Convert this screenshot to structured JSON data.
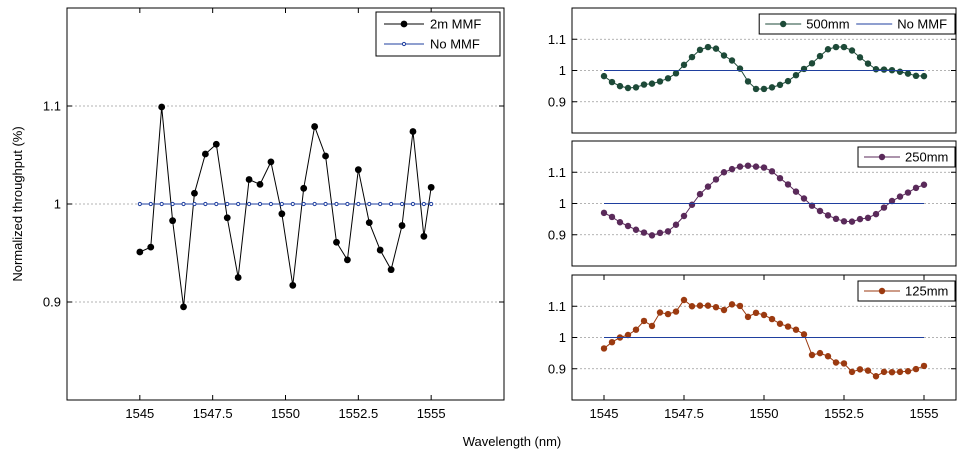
{
  "figure": {
    "xlabel": "Wavelength (nm)",
    "ylabel": "Normalized throughput (%)"
  },
  "chart_data": [
    {
      "type": "line",
      "xlim": [
        1542.5,
        1557.5
      ],
      "ylim": [
        0.8,
        1.2
      ],
      "xticks": [
        "1545",
        "1547.5",
        "1550",
        "1552.5",
        "1555"
      ],
      "xtick_values": [
        1545,
        1547.5,
        1550,
        1552.5,
        1555
      ],
      "yticks": [
        "0.9",
        "1",
        "1.1"
      ],
      "ytick_values": [
        0.9,
        1.0,
        1.1
      ],
      "grid": true,
      "legend": "top-right",
      "x": [
        1545,
        1545.375,
        1545.75,
        1546.125,
        1546.5,
        1546.875,
        1547.25,
        1547.625,
        1548,
        1548.375,
        1548.75,
        1549.125,
        1549.5,
        1549.875,
        1550.25,
        1550.625,
        1551,
        1551.375,
        1551.75,
        1552.125,
        1552.5,
        1552.875,
        1553.25,
        1553.625,
        1554,
        1554.375,
        1554.75,
        1555
      ],
      "series": [
        {
          "name": "2m MMF",
          "color": "#000000",
          "marker": "dot",
          "values": [
            0.951,
            0.956,
            1.099,
            0.983,
            0.895,
            1.011,
            1.051,
            1.061,
            0.986,
            0.925,
            1.025,
            1.02,
            1.043,
            0.99,
            0.917,
            1.016,
            1.079,
            1.049,
            0.961,
            0.943,
            1.035,
            0.981,
            0.953,
            0.933,
            0.978,
            1.074,
            0.967,
            1.017
          ]
        },
        {
          "name": "No MMF",
          "color": "#1f3f9f",
          "marker": "small-circle",
          "values": [
            1.0,
            1.0,
            1.0,
            1.0,
            1.0,
            1.0,
            1.0,
            1.0,
            1.0,
            1.0,
            1.0,
            1.0,
            1.0,
            1.0,
            1.0,
            1.0,
            1.0,
            1.0,
            1.0,
            1.0,
            1.0,
            1.0,
            1.0,
            1.0,
            1.0,
            1.0,
            1.0,
            1.0
          ]
        }
      ]
    },
    {
      "type": "line",
      "xlim": [
        1544,
        1556
      ],
      "ylim": [
        0.8,
        1.2
      ],
      "xticks": [],
      "yticks": [
        "0.9",
        "1",
        "1.1"
      ],
      "ytick_values": [
        0.9,
        1.0,
        1.1
      ],
      "grid": true,
      "legend": "top-right",
      "series": [
        {
          "name": "500mm",
          "color": "#1d4a38",
          "marker": "dot",
          "x": [
            1545,
            1545.25,
            1545.5,
            1545.75,
            1546,
            1546.25,
            1546.5,
            1546.75,
            1547,
            1547.25,
            1547.5,
            1547.75,
            1548,
            1548.25,
            1548.5,
            1548.75,
            1549,
            1549.25,
            1549.5,
            1549.75,
            1550,
            1550.25,
            1550.5,
            1550.75,
            1551,
            1551.25,
            1551.5,
            1551.75,
            1552,
            1552.25,
            1552.5,
            1552.75,
            1553,
            1553.25,
            1553.5,
            1553.75,
            1554,
            1554.25,
            1554.5,
            1554.75,
            1555
          ],
          "values": [
            0.982,
            0.963,
            0.95,
            0.944,
            0.946,
            0.955,
            0.958,
            0.965,
            0.975,
            0.991,
            1.018,
            1.043,
            1.066,
            1.075,
            1.07,
            1.048,
            1.032,
            1.006,
            0.965,
            0.941,
            0.941,
            0.946,
            0.954,
            0.966,
            0.985,
            1.005,
            1.023,
            1.046,
            1.068,
            1.075,
            1.075,
            1.064,
            1.042,
            1.022,
            1.004,
            1.003,
            1.001,
            0.996,
            0.99,
            0.983,
            0.982
          ]
        },
        {
          "name": "No MMF",
          "color": "#1f3f9f",
          "marker": "none",
          "x": [
            1545,
            1555
          ],
          "values": [
            1.0,
            1.0
          ]
        }
      ]
    },
    {
      "type": "line",
      "xlim": [
        1544,
        1556
      ],
      "ylim": [
        0.8,
        1.2
      ],
      "xticks": [],
      "yticks": [
        "0.9",
        "1",
        "1.1"
      ],
      "ytick_values": [
        0.9,
        1.0,
        1.1
      ],
      "grid": true,
      "legend": "top-right",
      "series": [
        {
          "name": "250mm",
          "color": "#5a2a5a",
          "marker": "dot",
          "x": [
            1545,
            1545.25,
            1545.5,
            1545.75,
            1546,
            1546.25,
            1546.5,
            1546.75,
            1547,
            1547.25,
            1547.5,
            1547.75,
            1548,
            1548.25,
            1548.5,
            1548.75,
            1549,
            1549.25,
            1549.5,
            1549.75,
            1550,
            1550.25,
            1550.5,
            1550.75,
            1551,
            1551.25,
            1551.5,
            1551.75,
            1552,
            1552.25,
            1552.5,
            1552.75,
            1553,
            1553.25,
            1553.5,
            1553.75,
            1554,
            1554.25,
            1554.5,
            1554.75,
            1555
          ],
          "values": [
            0.97,
            0.957,
            0.94,
            0.928,
            0.916,
            0.907,
            0.898,
            0.906,
            0.911,
            0.932,
            0.96,
            0.996,
            1.03,
            1.054,
            1.077,
            1.1,
            1.11,
            1.118,
            1.121,
            1.118,
            1.115,
            1.103,
            1.081,
            1.061,
            1.038,
            1.016,
            0.993,
            0.976,
            0.962,
            0.951,
            0.943,
            0.942,
            0.95,
            0.954,
            0.966,
            0.987,
            1.008,
            1.022,
            1.035,
            1.05,
            1.06
          ]
        },
        {
          "name": "",
          "color": "#1f3f9f",
          "marker": "none",
          "x": [
            1545,
            1555
          ],
          "values": [
            1.0,
            1.0
          ]
        }
      ]
    },
    {
      "type": "line",
      "xlim": [
        1544,
        1556
      ],
      "ylim": [
        0.8,
        1.2
      ],
      "xticks": [
        "1545",
        "1547.5",
        "1550",
        "1552.5",
        "1555"
      ],
      "xtick_values": [
        1545,
        1547.5,
        1550,
        1552.5,
        1555
      ],
      "yticks": [
        "0.9",
        "1",
        "1.1"
      ],
      "ytick_values": [
        0.9,
        1.0,
        1.1
      ],
      "grid": true,
      "legend": "top-right",
      "series": [
        {
          "name": "125mm",
          "color": "#9b3a10",
          "marker": "dot",
          "x": [
            1545,
            1545.25,
            1545.5,
            1545.75,
            1546,
            1546.25,
            1546.5,
            1546.75,
            1547,
            1547.25,
            1547.5,
            1547.75,
            1548,
            1548.25,
            1548.5,
            1548.75,
            1549,
            1549.25,
            1549.5,
            1549.75,
            1550,
            1550.25,
            1550.5,
            1550.75,
            1551,
            1551.25,
            1551.5,
            1551.75,
            1552,
            1552.25,
            1552.5,
            1552.75,
            1553,
            1553.25,
            1553.5,
            1553.75,
            1554,
            1554.25,
            1554.5,
            1554.75,
            1555
          ],
          "values": [
            0.965,
            0.985,
            1.0,
            1.008,
            1.025,
            1.053,
            1.037,
            1.08,
            1.075,
            1.083,
            1.12,
            1.1,
            1.102,
            1.102,
            1.097,
            1.088,
            1.106,
            1.101,
            1.066,
            1.079,
            1.072,
            1.059,
            1.044,
            1.035,
            1.025,
            1.01,
            0.944,
            0.95,
            0.94,
            0.92,
            0.917,
            0.89,
            0.898,
            0.894,
            0.876,
            0.89,
            0.889,
            0.89,
            0.892,
            0.899,
            0.909
          ]
        },
        {
          "name": "",
          "color": "#1f3f9f",
          "marker": "none",
          "x": [
            1545,
            1555
          ],
          "values": [
            1.0,
            1.0
          ]
        }
      ]
    }
  ]
}
